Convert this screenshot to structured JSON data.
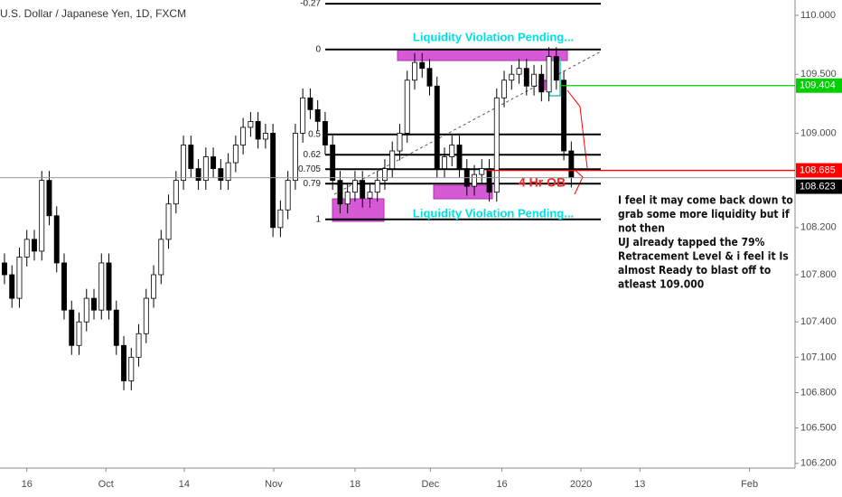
{
  "chart_data": {
    "type": "candlestick",
    "title": "U.S. Dollar / Japanese Yen, 1D, FXCM",
    "open": [
      107.9,
      107.8,
      107.6,
      107.95,
      108.1,
      108.0,
      108.6,
      108.3,
      107.9,
      107.5,
      107.2,
      107.4,
      107.6,
      107.5,
      107.9,
      107.5,
      107.2,
      106.9,
      107.1,
      107.3,
      107.6,
      107.8,
      108.1,
      108.4,
      108.6,
      108.9,
      108.7,
      108.6,
      108.8,
      108.7,
      108.6,
      108.75,
      108.9,
      109.05,
      109.1,
      108.95,
      109.0,
      108.2,
      108.35,
      108.6,
      109.0,
      109.3,
      109.2,
      109.1,
      108.9,
      108.6,
      108.4,
      108.5,
      108.6,
      108.45,
      108.5,
      108.6,
      108.7,
      108.85,
      109.0,
      109.45,
      109.6,
      109.55,
      109.4,
      108.7,
      108.8,
      108.9,
      108.7,
      108.55,
      108.65,
      108.7,
      108.5,
      109.3,
      109.45,
      109.5,
      109.55,
      109.4,
      109.5,
      109.35,
      109.65,
      109.45,
      108.85
    ],
    "high": [
      107.98,
      107.88,
      108.03,
      108.18,
      108.18,
      108.68,
      108.68,
      108.38,
      107.98,
      107.58,
      107.48,
      107.68,
      107.68,
      107.98,
      107.98,
      107.58,
      107.28,
      107.18,
      107.38,
      107.68,
      107.88,
      108.18,
      108.48,
      108.68,
      108.98,
      108.98,
      108.78,
      108.88,
      108.88,
      108.78,
      108.83,
      108.98,
      109.13,
      109.18,
      109.18,
      109.08,
      109.08,
      108.43,
      108.68,
      109.08,
      109.38,
      109.38,
      109.28,
      109.18,
      108.98,
      108.68,
      108.58,
      108.68,
      108.68,
      108.58,
      108.68,
      108.78,
      108.93,
      109.08,
      109.53,
      109.68,
      109.68,
      109.63,
      109.48,
      108.88,
      108.98,
      108.98,
      108.78,
      108.73,
      108.78,
      108.78,
      109.38,
      109.53,
      109.58,
      109.63,
      109.63,
      109.58,
      109.58,
      109.73,
      109.73,
      109.53,
      108.93
    ],
    "low": [
      107.72,
      107.52,
      107.52,
      107.87,
      107.92,
      107.92,
      108.22,
      107.82,
      107.42,
      107.12,
      107.12,
      107.32,
      107.42,
      107.42,
      107.42,
      107.12,
      106.82,
      106.82,
      107.02,
      107.22,
      107.52,
      107.72,
      108.02,
      108.32,
      108.52,
      108.62,
      108.52,
      108.52,
      108.62,
      108.52,
      108.52,
      108.67,
      108.82,
      108.97,
      108.87,
      108.87,
      108.12,
      108.12,
      108.27,
      108.52,
      108.92,
      109.12,
      109.02,
      108.82,
      108.52,
      108.32,
      108.32,
      108.42,
      108.37,
      108.37,
      108.42,
      108.52,
      108.62,
      108.77,
      108.92,
      109.37,
      109.47,
      109.32,
      108.62,
      108.62,
      108.72,
      108.62,
      108.47,
      108.47,
      108.57,
      108.42,
      108.42,
      109.22,
      109.37,
      109.42,
      109.32,
      109.32,
      109.27,
      109.27,
      109.37,
      108.77,
      108.54
    ],
    "close": [
      107.8,
      107.6,
      107.95,
      108.1,
      108.0,
      108.6,
      108.3,
      107.9,
      107.5,
      107.2,
      107.4,
      107.6,
      107.5,
      107.9,
      107.5,
      107.2,
      106.9,
      107.1,
      107.3,
      107.6,
      107.8,
      108.1,
      108.4,
      108.6,
      108.9,
      108.7,
      108.6,
      108.8,
      108.7,
      108.6,
      108.75,
      108.9,
      109.05,
      109.1,
      108.95,
      109.0,
      108.2,
      108.35,
      108.6,
      109.0,
      109.3,
      109.2,
      109.1,
      108.9,
      108.6,
      108.4,
      108.5,
      108.6,
      108.45,
      108.5,
      108.6,
      108.7,
      108.85,
      109.0,
      109.45,
      109.6,
      109.55,
      109.4,
      108.7,
      108.8,
      108.9,
      108.7,
      108.55,
      108.65,
      108.7,
      108.5,
      109.3,
      109.45,
      109.5,
      109.55,
      109.4,
      109.5,
      109.35,
      109.65,
      109.45,
      108.85,
      108.623
    ],
    "up_color": "#ffffff",
    "down_color": "#000000",
    "xlim": [
      -0.6,
      106
    ],
    "xticks": [
      {
        "value": 3,
        "label": "16"
      },
      {
        "value": 13.6,
        "label": "Oct"
      },
      {
        "value": 24.1,
        "label": "14"
      },
      {
        "value": 36.1,
        "label": "Nov"
      },
      {
        "value": 47,
        "label": "18"
      },
      {
        "value": 57.1,
        "label": "Dec"
      },
      {
        "value": 66.7,
        "label": "16"
      },
      {
        "value": 77.3,
        "label": "2020"
      },
      {
        "value": 85.2,
        "label": "13"
      },
      {
        "value": 99.9,
        "label": "Feb"
      }
    ],
    "ylim": [
      106.16,
      110.13
    ],
    "yticks": [
      {
        "value": 110,
        "label": "110.000"
      },
      {
        "value": 109.5,
        "label": "109.500"
      },
      {
        "value": 109,
        "label": "109.000"
      },
      {
        "value": 108.2,
        "label": "108.200"
      },
      {
        "value": 107.8,
        "label": "107.800"
      },
      {
        "value": 107.4,
        "label": "107.400"
      },
      {
        "value": 107.1,
        "label": "107.100"
      },
      {
        "value": 106.8,
        "label": "106.800"
      },
      {
        "value": 106.5,
        "label": "106.500"
      },
      {
        "value": 106.2,
        "label": "106.200"
      }
    ],
    "fib_levels": [
      -0.27,
      0,
      0.5,
      0.62,
      0.705,
      0.79,
      1
    ],
    "fib_zero_price": 109.71,
    "fib_one_price": 108.27,
    "price_lines": [
      {
        "value": 109.404,
        "color": "#00d000"
      },
      {
        "value": 108.685,
        "color": "#ff0000"
      },
      {
        "value": 108.623,
        "color": "#000000"
      }
    ],
    "annotations": {
      "zone_top": "Liquidity Violation Pending...",
      "zone_bottom": "Liquidity Violation Pending...",
      "order_block": "4 Hr OB"
    },
    "note": [
      "I feel it may come back down to",
      "grab some more liquidity but if",
      "not then",
      "UJ already tapped the 79%",
      "Retracement Level & i feel it Is",
      "almost Ready to blast off to",
      "atleast 109.000"
    ]
  }
}
